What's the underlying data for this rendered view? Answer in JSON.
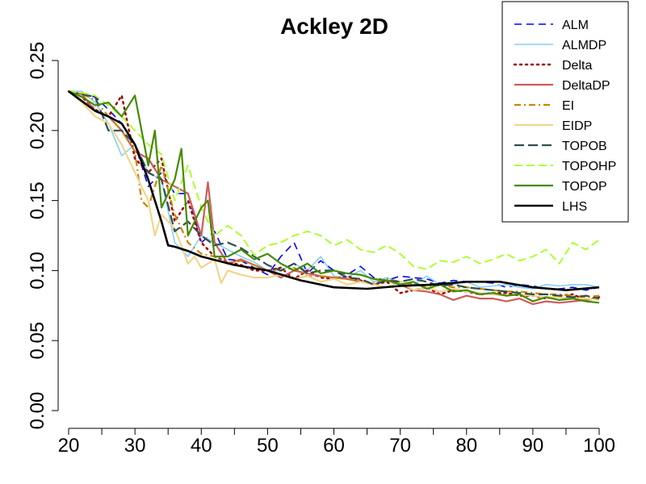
{
  "chart_data": {
    "type": "line",
    "title": "Ackley 2D",
    "xlabel": "",
    "ylabel": "",
    "xlim": [
      20,
      100
    ],
    "ylim": [
      0.0,
      0.25
    ],
    "x_ticks": [
      20,
      30,
      40,
      50,
      60,
      70,
      80,
      90,
      100
    ],
    "x_tick_labels": [
      "20",
      "30",
      "40",
      "50",
      "60",
      "70",
      "80",
      "90",
      "100"
    ],
    "y_ticks": [
      0.0,
      0.05,
      0.1,
      0.15,
      0.2,
      0.25
    ],
    "y_tick_labels": [
      "0.00",
      "0.05",
      "0.10",
      "0.15",
      "0.20",
      "0.25"
    ],
    "grid": false,
    "legend_position": "top-right",
    "series": [
      {
        "name": "ALM",
        "color": "#0000ff",
        "dash": "9,6",
        "width": 1.6,
        "x": [
          20,
          22,
          24,
          26,
          28,
          30,
          32,
          34,
          36,
          38,
          40,
          42,
          44,
          46,
          48,
          50,
          52,
          54,
          56,
          58,
          60,
          62,
          64,
          66,
          68,
          70,
          72,
          74,
          76,
          78,
          80,
          82,
          84,
          86,
          88,
          90,
          92,
          94,
          96,
          98,
          100
        ],
        "y": [
          0.228,
          0.226,
          0.224,
          0.215,
          0.205,
          0.19,
          0.16,
          0.17,
          0.155,
          0.155,
          0.12,
          0.128,
          0.108,
          0.107,
          0.102,
          0.097,
          0.11,
          0.12,
          0.098,
          0.107,
          0.1,
          0.097,
          0.103,
          0.095,
          0.093,
          0.096,
          0.095,
          0.094,
          0.091,
          0.093,
          0.092,
          0.092,
          0.091,
          0.088,
          0.09,
          0.089,
          0.087,
          0.087,
          0.088,
          0.086,
          0.088
        ]
      },
      {
        "name": "ALMDP",
        "color": "#87cefa",
        "dash": "",
        "width": 1.6,
        "x": [
          20,
          22,
          24,
          26,
          28,
          30,
          32,
          34,
          36,
          38,
          40,
          42,
          44,
          46,
          48,
          50,
          52,
          54,
          56,
          58,
          60,
          62,
          64,
          66,
          68,
          70,
          72,
          74,
          76,
          78,
          80,
          82,
          84,
          86,
          88,
          90,
          92,
          94,
          96,
          98,
          100
        ],
        "y": [
          0.228,
          0.228,
          0.22,
          0.205,
          0.182,
          0.19,
          0.17,
          0.165,
          0.12,
          0.11,
          0.125,
          0.12,
          0.115,
          0.11,
          0.106,
          0.1,
          0.1,
          0.105,
          0.1,
          0.11,
          0.096,
          0.095,
          0.1,
          0.092,
          0.095,
          0.091,
          0.09,
          0.096,
          0.09,
          0.09,
          0.092,
          0.088,
          0.089,
          0.09,
          0.088,
          0.087,
          0.09,
          0.089,
          0.09,
          0.09,
          0.088
        ]
      },
      {
        "name": "Delta",
        "color": "#a00000",
        "dash": "2,5",
        "width": 2.5,
        "x": [
          20,
          22,
          24,
          26,
          28,
          30,
          32,
          34,
          36,
          38,
          40,
          42,
          44,
          46,
          48,
          50,
          52,
          54,
          56,
          58,
          60,
          62,
          64,
          66,
          68,
          70,
          72,
          74,
          76,
          78,
          80,
          82,
          84,
          86,
          88,
          90,
          92,
          94,
          96,
          98,
          100
        ],
        "y": [
          0.228,
          0.224,
          0.215,
          0.21,
          0.225,
          0.18,
          0.17,
          0.18,
          0.135,
          0.15,
          0.12,
          0.11,
          0.106,
          0.104,
          0.1,
          0.1,
          0.102,
          0.094,
          0.1,
          0.095,
          0.094,
          0.096,
          0.093,
          0.09,
          0.092,
          0.084,
          0.086,
          0.088,
          0.083,
          0.086,
          0.085,
          0.083,
          0.084,
          0.084,
          0.082,
          0.082,
          0.08,
          0.082,
          0.083,
          0.079,
          0.081
        ]
      },
      {
        "name": "DeltaDP",
        "color": "#cd5c5c",
        "dash": "",
        "width": 2.2,
        "x": [
          20,
          22,
          24,
          26,
          28,
          30,
          32,
          34,
          36,
          38,
          40,
          41,
          42,
          44,
          46,
          48,
          50,
          52,
          54,
          56,
          58,
          60,
          62,
          64,
          66,
          68,
          70,
          72,
          74,
          76,
          78,
          80,
          82,
          84,
          86,
          88,
          90,
          92,
          94,
          96,
          98,
          100
        ],
        "y": [
          0.228,
          0.226,
          0.214,
          0.21,
          0.2,
          0.185,
          0.18,
          0.165,
          0.16,
          0.155,
          0.125,
          0.163,
          0.12,
          0.105,
          0.108,
          0.104,
          0.1,
          0.095,
          0.1,
          0.098,
          0.096,
          0.095,
          0.094,
          0.092,
          0.09,
          0.093,
          0.09,
          0.086,
          0.085,
          0.083,
          0.079,
          0.082,
          0.08,
          0.08,
          0.078,
          0.08,
          0.076,
          0.078,
          0.077,
          0.078,
          0.079,
          0.08
        ]
      },
      {
        "name": "EI",
        "color": "#cd8500",
        "dash": "8,4,2,4",
        "width": 2.2,
        "x": [
          20,
          22,
          24,
          26,
          28,
          30,
          31,
          32,
          34,
          36,
          38,
          40,
          42,
          44,
          46,
          48,
          50,
          52,
          54,
          56,
          58,
          60,
          62,
          64,
          66,
          68,
          70,
          72,
          74,
          76,
          78,
          80,
          82,
          84,
          86,
          88,
          90,
          92,
          94,
          96,
          98,
          100
        ],
        "y": [
          0.228,
          0.226,
          0.222,
          0.21,
          0.2,
          0.185,
          0.15,
          0.145,
          0.175,
          0.14,
          0.12,
          0.112,
          0.11,
          0.105,
          0.107,
          0.104,
          0.1,
          0.1,
          0.102,
          0.096,
          0.096,
          0.095,
          0.094,
          0.093,
          0.091,
          0.094,
          0.092,
          0.09,
          0.089,
          0.09,
          0.088,
          0.088,
          0.087,
          0.086,
          0.085,
          0.085,
          0.084,
          0.083,
          0.083,
          0.082,
          0.081,
          0.082
        ]
      },
      {
        "name": "EIDP",
        "color": "#f0d68c",
        "dash": "",
        "width": 2.2,
        "x": [
          20,
          22,
          24,
          26,
          28,
          30,
          32,
          33,
          34,
          36,
          38,
          39,
          40,
          42,
          43,
          44,
          46,
          48,
          50,
          52,
          54,
          56,
          58,
          60,
          62,
          64,
          66,
          68,
          70,
          72,
          74,
          76,
          78,
          80,
          82,
          84,
          86,
          88,
          90,
          92,
          94,
          96,
          98,
          100
        ],
        "y": [
          0.228,
          0.22,
          0.21,
          0.205,
          0.19,
          0.17,
          0.15,
          0.125,
          0.14,
          0.13,
          0.105,
          0.11,
          0.102,
          0.108,
          0.091,
          0.1,
          0.097,
          0.095,
          0.095,
          0.097,
          0.094,
          0.096,
          0.092,
          0.094,
          0.09,
          0.092,
          0.09,
          0.088,
          0.092,
          0.086,
          0.088,
          0.085,
          0.087,
          0.085,
          0.084,
          0.083,
          0.082,
          0.083,
          0.082,
          0.081,
          0.081,
          0.08,
          0.08,
          0.079
        ]
      },
      {
        "name": "TOPOB",
        "color": "#2f4f4f",
        "dash": "12,5",
        "width": 2.2,
        "x": [
          20,
          22,
          24,
          26,
          28,
          30,
          32,
          34,
          36,
          38,
          40,
          42,
          44,
          46,
          48,
          50,
          52,
          54,
          56,
          58,
          60,
          62,
          64,
          66,
          68,
          70,
          72,
          74,
          76,
          78,
          80,
          82,
          84,
          86,
          88,
          90,
          92,
          94,
          96,
          98,
          100
        ],
        "y": [
          0.228,
          0.226,
          0.224,
          0.2,
          0.2,
          0.19,
          0.17,
          0.165,
          0.128,
          0.135,
          0.125,
          0.118,
          0.12,
          0.116,
          0.11,
          0.104,
          0.1,
          0.105,
          0.098,
          0.1,
          0.1,
          0.095,
          0.094,
          0.09,
          0.093,
          0.092,
          0.094,
          0.092,
          0.089,
          0.09,
          0.088,
          0.087,
          0.086,
          0.085,
          0.084,
          0.083,
          0.083,
          0.082,
          0.081,
          0.082,
          0.08
        ]
      },
      {
        "name": "TOPOHP",
        "color": "#adff2f",
        "dash": "10,5",
        "width": 2,
        "x": [
          20,
          22,
          24,
          26,
          28,
          30,
          32,
          34,
          36,
          38,
          40,
          42,
          44,
          46,
          48,
          50,
          52,
          54,
          56,
          58,
          60,
          62,
          64,
          66,
          68,
          70,
          72,
          74,
          76,
          78,
          80,
          82,
          84,
          86,
          88,
          90,
          92,
          94,
          96,
          98,
          100
        ],
        "y": [
          0.228,
          0.227,
          0.225,
          0.218,
          0.21,
          0.2,
          0.19,
          0.183,
          0.15,
          0.175,
          0.145,
          0.125,
          0.132,
          0.125,
          0.111,
          0.118,
          0.12,
          0.125,
          0.128,
          0.125,
          0.118,
          0.122,
          0.115,
          0.113,
          0.118,
          0.112,
          0.103,
          0.101,
          0.107,
          0.106,
          0.11,
          0.105,
          0.108,
          0.112,
          0.107,
          0.11,
          0.115,
          0.105,
          0.12,
          0.115,
          0.122
        ]
      },
      {
        "name": "TOPOP",
        "color": "#458b00",
        "dash": "",
        "width": 2.2,
        "x": [
          20,
          22,
          24,
          26,
          28,
          30,
          32,
          33,
          34,
          36,
          37,
          38,
          40,
          41,
          42,
          44,
          46,
          48,
          50,
          52,
          54,
          56,
          58,
          60,
          62,
          64,
          66,
          68,
          70,
          72,
          74,
          76,
          78,
          80,
          82,
          84,
          86,
          88,
          90,
          92,
          94,
          96,
          98,
          100
        ],
        "y": [
          0.228,
          0.224,
          0.218,
          0.22,
          0.21,
          0.225,
          0.175,
          0.2,
          0.145,
          0.165,
          0.187,
          0.125,
          0.145,
          0.15,
          0.11,
          0.11,
          0.115,
          0.108,
          0.112,
          0.105,
          0.1,
          0.105,
          0.098,
          0.1,
          0.098,
          0.097,
          0.094,
          0.093,
          0.09,
          0.092,
          0.087,
          0.09,
          0.085,
          0.086,
          0.083,
          0.084,
          0.082,
          0.083,
          0.078,
          0.081,
          0.079,
          0.08,
          0.078,
          0.077
        ]
      },
      {
        "name": "LHS",
        "color": "#000000",
        "dash": "",
        "width": 2.6,
        "x": [
          20,
          22,
          24,
          26,
          28,
          30,
          32,
          34,
          35,
          36,
          38,
          40,
          45,
          50,
          55,
          60,
          65,
          70,
          75,
          80,
          85,
          90,
          95,
          100
        ],
        "y": [
          0.228,
          0.221,
          0.214,
          0.21,
          0.205,
          0.19,
          0.165,
          0.135,
          0.118,
          0.117,
          0.114,
          0.11,
          0.104,
          0.1,
          0.093,
          0.088,
          0.087,
          0.089,
          0.09,
          0.092,
          0.092,
          0.088,
          0.086,
          0.088
        ]
      }
    ]
  }
}
